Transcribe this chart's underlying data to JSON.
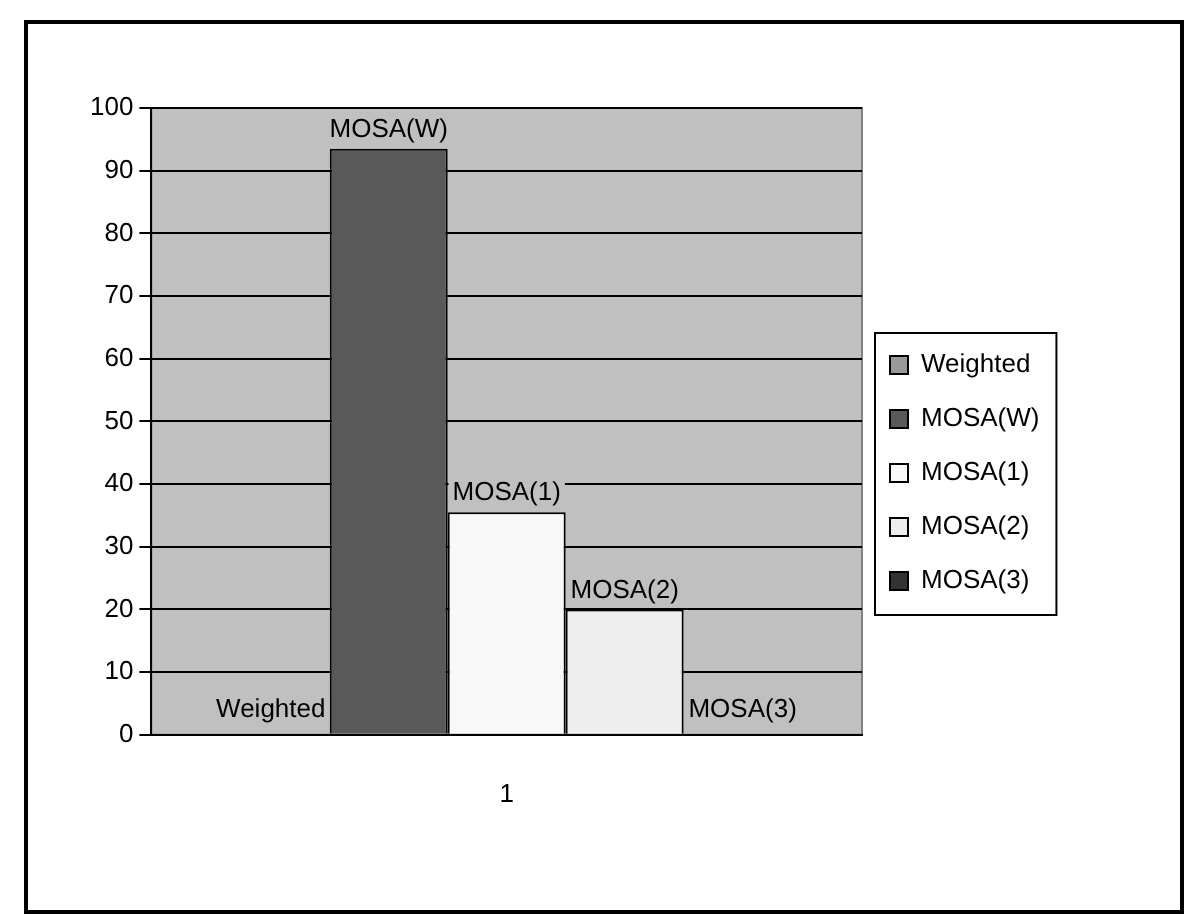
{
  "chart_data": {
    "type": "bar",
    "categories": [
      "1"
    ],
    "series": [
      {
        "name": "Weighted",
        "color": "#999999",
        "values": [
          0
        ]
      },
      {
        "name": "MOSA(W)",
        "color": "#595959",
        "values": [
          93.5
        ]
      },
      {
        "name": "MOSA(1)",
        "color": "#f8f8f8",
        "values": [
          35.5
        ]
      },
      {
        "name": "MOSA(2)",
        "color": "#eeeeee",
        "values": [
          20
        ]
      },
      {
        "name": "MOSA(3)",
        "color": "#333333",
        "values": [
          0
        ]
      }
    ],
    "annotations": [
      "Weighted",
      "MOSA(W)",
      "MOSA(1)",
      "MOSA(2)",
      "MOSA(3)"
    ],
    "ylim": [
      0,
      100
    ],
    "yticks": [
      0,
      10,
      20,
      30,
      40,
      50,
      60,
      70,
      80,
      90,
      100
    ],
    "grid": "y",
    "legend": "right"
  }
}
